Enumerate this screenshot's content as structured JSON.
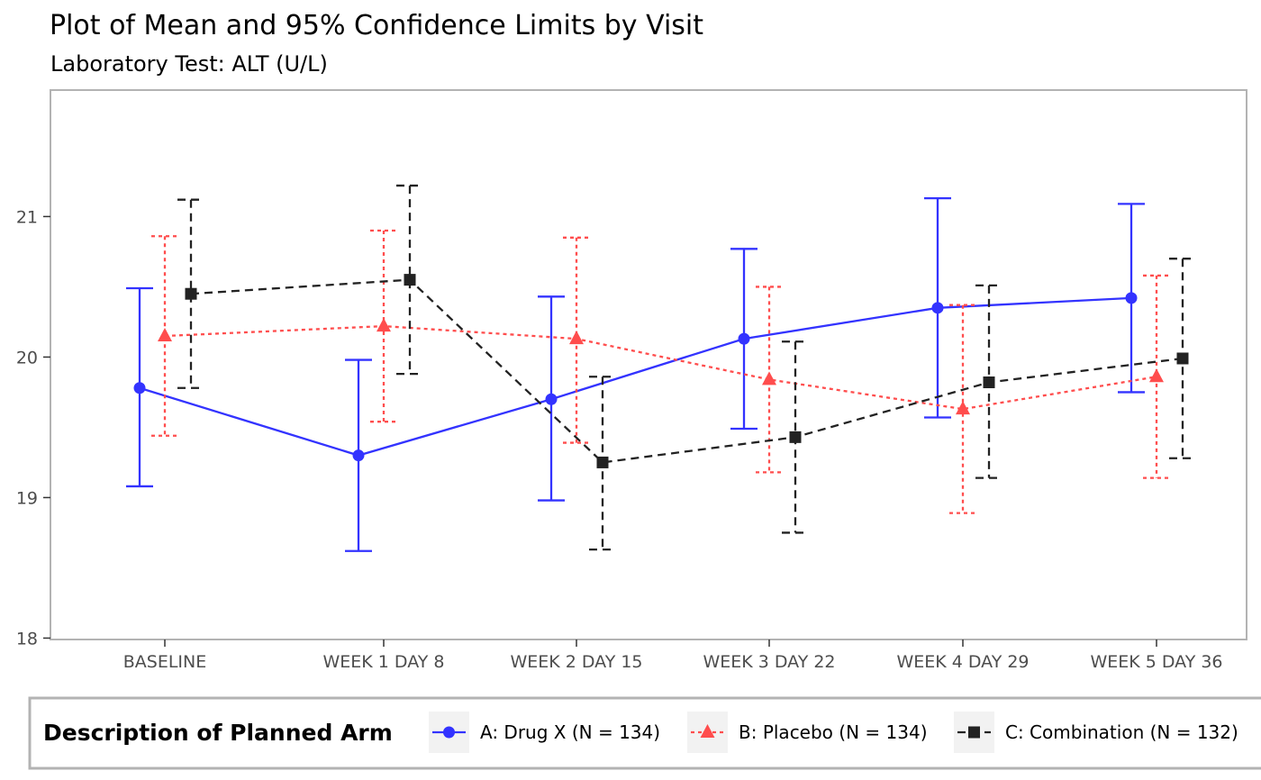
{
  "chart_data": {
    "type": "line",
    "title": "Plot of Mean and 95% Confidence Limits by Visit",
    "subtitle": "Laboratory Test: ALT (U/L)",
    "xlabel": "",
    "ylabel": "",
    "categories": [
      "BASELINE",
      "WEEK 1 DAY 8",
      "WEEK 2 DAY 15",
      "WEEK 3 DAY 22",
      "WEEK 4 DAY 29",
      "WEEK 5 DAY 36"
    ],
    "ylim": [
      17.99,
      21.9
    ],
    "yticks": [
      18,
      19,
      20,
      21
    ],
    "grid": false,
    "error_bars": "95% confidence limits",
    "legend": {
      "title": "Description of Planned Arm",
      "position": "bottom"
    },
    "series": [
      {
        "name": "A: Drug X (N = 134)",
        "color": "#3333ff",
        "marker": "circle",
        "line_style": "solid",
        "values": [
          19.78,
          19.3,
          19.7,
          20.13,
          20.35,
          20.42
        ],
        "lower": [
          19.08,
          18.62,
          18.98,
          19.49,
          19.57,
          19.75
        ],
        "upper": [
          20.49,
          19.98,
          20.43,
          20.77,
          21.13,
          21.09
        ]
      },
      {
        "name": "B: Placebo (N = 134)",
        "color": "#ff4d4d",
        "marker": "triangle",
        "line_style": "dotted",
        "values": [
          20.15,
          20.22,
          20.13,
          19.84,
          19.63,
          19.86
        ],
        "lower": [
          19.44,
          19.54,
          19.39,
          19.18,
          18.89,
          19.14
        ],
        "upper": [
          20.86,
          20.9,
          20.85,
          20.5,
          20.37,
          20.58
        ]
      },
      {
        "name": "C: Combination (N = 132)",
        "color": "#222222",
        "marker": "square",
        "line_style": "dashed",
        "values": [
          20.45,
          20.55,
          19.25,
          19.43,
          19.82,
          19.99
        ],
        "lower": [
          19.78,
          19.88,
          18.63,
          18.75,
          19.14,
          19.28
        ],
        "upper": [
          21.12,
          21.22,
          19.86,
          20.11,
          20.51,
          20.7
        ]
      }
    ]
  }
}
